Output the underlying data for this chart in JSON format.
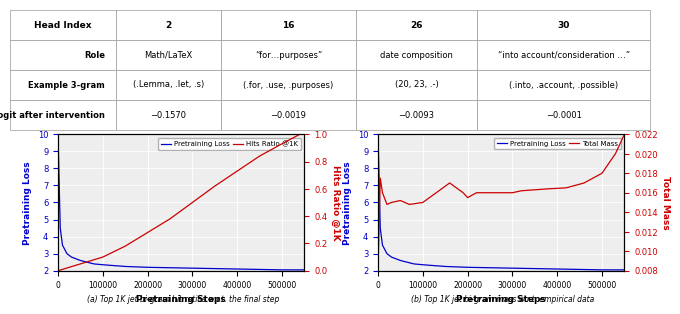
{
  "table": {
    "header": [
      "Head Index",
      "2",
      "16",
      "26",
      "30"
    ],
    "rows": [
      [
        "Role",
        "Math/LaTeX",
        "“for…purposes”",
        "date composition",
        "“into account/consideration …”"
      ],
      [
        "Example 3-gram",
        "(.Lemma, .let, .s)",
        "(.for, .use, .purposes)",
        "(20, 23, .-)",
        "(.into, .account, .possible)"
      ],
      [
        "Δlogit after intervention",
        "−0.1570",
        "−0.0019",
        "−0.0093",
        "−0.0001"
      ]
    ]
  },
  "plot_left": {
    "pretraining_loss_x": [
      0,
      5000,
      10000,
      20000,
      30000,
      50000,
      80000,
      100000,
      150000,
      200000,
      300000,
      400000,
      500000,
      550000
    ],
    "pretraining_loss_y": [
      10.0,
      4.5,
      3.5,
      3.0,
      2.8,
      2.6,
      2.4,
      2.35,
      2.25,
      2.2,
      2.15,
      2.1,
      2.05,
      2.05
    ],
    "hits_ratio_x": [
      0,
      5000,
      10000,
      20000,
      50000,
      100000,
      150000,
      200000,
      250000,
      300000,
      350000,
      400000,
      450000,
      500000,
      540000
    ],
    "hits_ratio_y": [
      0.0,
      0.005,
      0.01,
      0.02,
      0.05,
      0.1,
      0.18,
      0.28,
      0.38,
      0.5,
      0.62,
      0.73,
      0.84,
      0.93,
      1.0
    ],
    "ylabel_left": "Pretraining Loss",
    "ylabel_right": "Hits Ratio @1K",
    "xlabel": "Pretraining Steps",
    "ylim_left": [
      2,
      10
    ],
    "ylim_right": [
      0.0,
      1.0
    ],
    "yticks_left": [
      2,
      3,
      4,
      5,
      6,
      7,
      8,
      9,
      10
    ],
    "yticks_right": [
      0.0,
      0.2,
      0.4,
      0.6,
      0.8,
      1.0
    ],
    "legend_loss": "Pretraining Loss",
    "legend_hits": "Hits Ratio @1K",
    "color_loss": "#0000cc",
    "color_hits": "#cc0000"
  },
  "plot_right": {
    "pretraining_loss_x": [
      0,
      5000,
      10000,
      20000,
      30000,
      50000,
      80000,
      100000,
      150000,
      200000,
      300000,
      400000,
      500000,
      550000
    ],
    "pretraining_loss_y": [
      10.0,
      4.5,
      3.5,
      3.0,
      2.8,
      2.6,
      2.4,
      2.35,
      2.25,
      2.2,
      2.15,
      2.1,
      2.05,
      2.05
    ],
    "total_mass_x": [
      0,
      5000,
      10000,
      20000,
      30000,
      50000,
      70000,
      100000,
      130000,
      160000,
      190000,
      200000,
      220000,
      250000,
      280000,
      300000,
      320000,
      350000,
      380000,
      420000,
      460000,
      500000,
      530000,
      550000
    ],
    "total_mass_y": [
      0.008,
      0.0175,
      0.016,
      0.0148,
      0.015,
      0.0152,
      0.0148,
      0.015,
      0.016,
      0.017,
      0.016,
      0.0155,
      0.016,
      0.016,
      0.016,
      0.016,
      0.0162,
      0.0163,
      0.0164,
      0.0165,
      0.017,
      0.018,
      0.02,
      0.022
    ],
    "ylabel_left": "Pretraining Loss",
    "ylabel_right": "Total Mass",
    "xlabel": "Pretraining Steps",
    "ylim_left": [
      2,
      10
    ],
    "ylim_right": [
      0.008,
      0.022
    ],
    "yticks_left": [
      2,
      3,
      4,
      5,
      6,
      7,
      8,
      9,
      10
    ],
    "yticks_right": [
      0.008,
      0.01,
      0.012,
      0.014,
      0.016,
      0.018,
      0.02,
      0.022
    ],
    "legend_loss": "Pretraining Loss",
    "legend_mass": "Total Mass",
    "color_loss": "#0000cc",
    "color_mass": "#cc0000"
  },
  "caption_left": "(a) Top 1K jet bi-gram hit ratios w.r.t. the final step",
  "caption_right": "(b) Top 1K jet bi-gram mass w.r.t. empirical data",
  "bg_color": "#eeeeee",
  "grid_color": "#ffffff"
}
